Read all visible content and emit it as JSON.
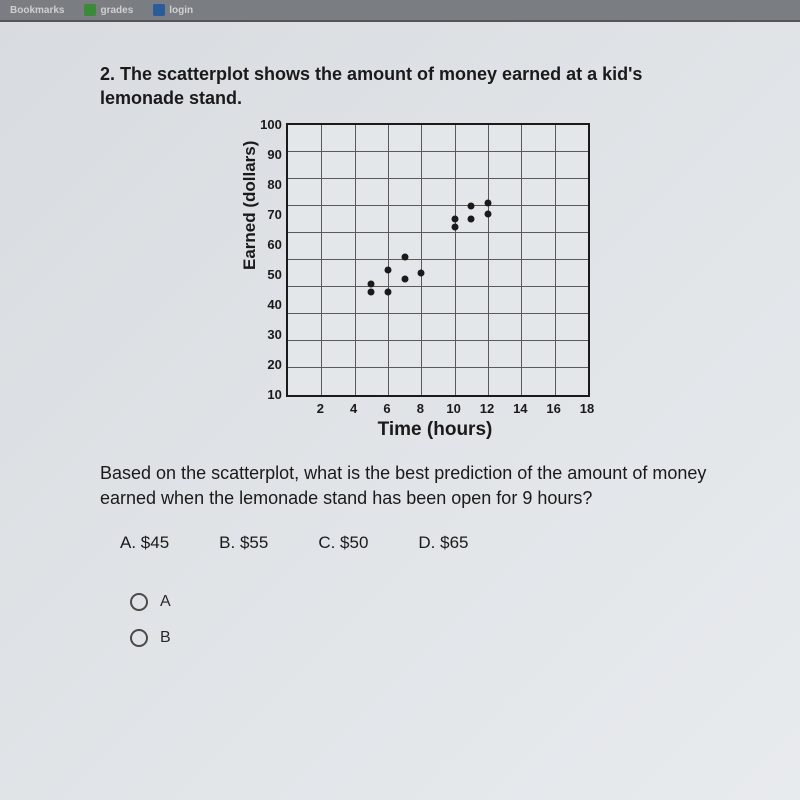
{
  "topbar": {
    "bookmarks": "Bookmarks",
    "grades": "grades",
    "login": "login"
  },
  "question": {
    "prompt": "2. The scatterplot shows the amount of money earned at a kid's lemonade stand.",
    "sub": "Based on the scatterplot, what is the best prediction of the amount of money earned when the lemonade stand has been open for 9 hours?"
  },
  "chart": {
    "type": "scatter",
    "ylabel": "Earned  (dollars)",
    "xlabel": "Time (hours)",
    "xlim": [
      0,
      18
    ],
    "ylim": [
      0,
      100
    ],
    "xtick_step": 2,
    "ytick_step": 10,
    "xticks": [
      "2",
      "4",
      "6",
      "8",
      "10",
      "12",
      "14",
      "16",
      "18"
    ],
    "yticks": [
      "100",
      "90",
      "80",
      "70",
      "60",
      "50",
      "40",
      "30",
      "20",
      "10"
    ],
    "grid_color": "#5a5a5a",
    "background_color": "#e4e7ea",
    "border_color": "#1a1a1a",
    "point_color": "#1a1a1a",
    "marker_size": 7,
    "points": [
      {
        "x": 5,
        "y": 38
      },
      {
        "x": 5,
        "y": 41
      },
      {
        "x": 6,
        "y": 38
      },
      {
        "x": 7,
        "y": 43
      },
      {
        "x": 6,
        "y": 46
      },
      {
        "x": 8,
        "y": 45
      },
      {
        "x": 7,
        "y": 51
      },
      {
        "x": 10,
        "y": 62
      },
      {
        "x": 10,
        "y": 65
      },
      {
        "x": 11,
        "y": 65
      },
      {
        "x": 11,
        "y": 70
      },
      {
        "x": 12,
        "y": 67
      },
      {
        "x": 12,
        "y": 71
      }
    ]
  },
  "answers": {
    "a": "A.   $45",
    "b": "B. $55",
    "c": "C. $50",
    "d": "D. $65"
  },
  "radios": {
    "a": "A",
    "b": "B"
  }
}
